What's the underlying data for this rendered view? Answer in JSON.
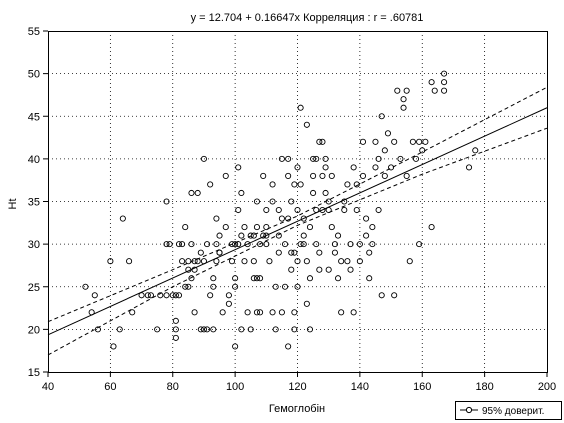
{
  "chart_data": {
    "type": "scatter",
    "title": "y = 12.704 + 0.16647x  Корреляция : r = .60781",
    "xlabel": "Гемоглобін",
    "ylabel": "Ht",
    "xlim": [
      40,
      200
    ],
    "ylim": [
      15,
      55
    ],
    "x_ticks": [
      40,
      60,
      80,
      100,
      120,
      140,
      160,
      180,
      200
    ],
    "y_ticks": [
      15,
      20,
      25,
      30,
      35,
      40,
      45,
      50,
      55
    ],
    "grid": "dashed",
    "legend": {
      "label": "95% доверит.",
      "position": "bottom-right"
    },
    "regression": {
      "intercept": 12.704,
      "slope": 0.16647
    },
    "confidence_band_95": {
      "upper": [
        [
          40,
          20.9
        ],
        [
          80,
          27.0
        ],
        [
          120,
          33.3
        ],
        [
          160,
          40.8
        ],
        [
          200,
          48.4
        ]
      ],
      "lower": [
        [
          40,
          17.0
        ],
        [
          80,
          25.0
        ],
        [
          120,
          32.2
        ],
        [
          160,
          38.2
        ],
        [
          200,
          43.6
        ]
      ]
    },
    "points": [
      [
        52,
        25
      ],
      [
        55,
        24
      ],
      [
        56,
        20
      ],
      [
        54,
        22
      ],
      [
        60,
        28
      ],
      [
        61,
        18
      ],
      [
        63,
        20
      ],
      [
        64,
        33
      ],
      [
        66,
        28
      ],
      [
        67,
        22
      ],
      [
        70,
        24
      ],
      [
        72,
        24
      ],
      [
        73,
        24
      ],
      [
        75,
        20
      ],
      [
        76,
        24
      ],
      [
        78,
        24
      ],
      [
        78,
        35
      ],
      [
        78,
        30
      ],
      [
        79,
        30
      ],
      [
        80,
        24
      ],
      [
        81,
        24
      ],
      [
        81,
        21
      ],
      [
        81,
        20
      ],
      [
        81,
        19
      ],
      [
        82,
        24
      ],
      [
        82,
        30
      ],
      [
        83,
        30
      ],
      [
        83,
        28
      ],
      [
        84,
        25
      ],
      [
        84,
        32
      ],
      [
        85,
        25
      ],
      [
        85,
        27
      ],
      [
        85,
        28
      ],
      [
        86,
        26
      ],
      [
        86,
        30
      ],
      [
        86,
        36
      ],
      [
        87,
        28
      ],
      [
        87,
        22
      ],
      [
        87,
        27
      ],
      [
        88,
        28
      ],
      [
        88,
        36
      ],
      [
        89,
        29
      ],
      [
        89,
        20
      ],
      [
        90,
        28
      ],
      [
        90,
        40
      ],
      [
        90,
        20
      ],
      [
        91,
        30
      ],
      [
        91,
        20
      ],
      [
        92,
        24
      ],
      [
        92,
        37
      ],
      [
        93,
        25
      ],
      [
        93,
        26
      ],
      [
        93,
        20
      ],
      [
        94,
        30
      ],
      [
        94,
        33
      ],
      [
        94,
        28
      ],
      [
        95,
        29
      ],
      [
        95,
        31
      ],
      [
        95,
        29
      ],
      [
        96,
        22
      ],
      [
        97,
        38
      ],
      [
        97,
        32
      ],
      [
        98,
        24
      ],
      [
        98,
        23
      ],
      [
        99,
        28
      ],
      [
        99,
        30
      ],
      [
        100,
        18
      ],
      [
        100,
        25
      ],
      [
        100,
        26
      ],
      [
        100,
        30
      ],
      [
        101,
        34
      ],
      [
        101,
        30
      ],
      [
        101,
        39
      ],
      [
        102,
        31
      ],
      [
        102,
        36
      ],
      [
        102,
        20
      ],
      [
        103,
        32
      ],
      [
        103,
        28
      ],
      [
        104,
        30
      ],
      [
        104,
        22
      ],
      [
        105,
        20
      ],
      [
        105,
        31
      ],
      [
        106,
        28
      ],
      [
        106,
        26
      ],
      [
        106,
        31
      ],
      [
        107,
        26
      ],
      [
        107,
        32
      ],
      [
        107,
        22
      ],
      [
        107,
        35
      ],
      [
        108,
        26
      ],
      [
        108,
        22
      ],
      [
        108,
        30
      ],
      [
        109,
        38
      ],
      [
        109,
        31
      ],
      [
        110,
        30
      ],
      [
        110,
        32
      ],
      [
        110,
        31
      ],
      [
        110,
        34
      ],
      [
        111,
        28
      ],
      [
        112,
        22
      ],
      [
        112,
        37
      ],
      [
        112,
        35
      ],
      [
        113,
        20
      ],
      [
        113,
        25
      ],
      [
        114,
        31
      ],
      [
        114,
        34
      ],
      [
        114,
        29
      ],
      [
        115,
        33
      ],
      [
        115,
        22
      ],
      [
        115,
        40
      ],
      [
        116,
        25
      ],
      [
        116,
        30
      ],
      [
        117,
        40
      ],
      [
        117,
        38
      ],
      [
        117,
        33
      ],
      [
        117,
        18
      ],
      [
        118,
        29
      ],
      [
        118,
        27
      ],
      [
        118,
        35
      ],
      [
        119,
        37
      ],
      [
        119,
        29
      ],
      [
        119,
        20
      ],
      [
        119,
        22
      ],
      [
        120,
        34
      ],
      [
        120,
        28
      ],
      [
        120,
        25
      ],
      [
        120,
        39
      ],
      [
        121,
        30
      ],
      [
        121,
        46
      ],
      [
        121,
        37
      ],
      [
        122,
        33
      ],
      [
        122,
        31
      ],
      [
        122,
        30
      ],
      [
        123,
        23
      ],
      [
        123,
        28
      ],
      [
        123,
        44
      ],
      [
        124,
        32
      ],
      [
        124,
        20
      ],
      [
        124,
        26
      ],
      [
        125,
        36
      ],
      [
        125,
        38
      ],
      [
        125,
        40
      ],
      [
        126,
        30
      ],
      [
        126,
        34
      ],
      [
        126,
        40
      ],
      [
        127,
        29
      ],
      [
        127,
        27
      ],
      [
        127,
        42
      ],
      [
        128,
        38
      ],
      [
        128,
        34
      ],
      [
        128,
        42
      ],
      [
        129,
        39
      ],
      [
        129,
        36
      ],
      [
        129,
        40
      ],
      [
        130,
        35
      ],
      [
        130,
        27
      ],
      [
        130,
        34
      ],
      [
        131,
        38
      ],
      [
        131,
        32
      ],
      [
        132,
        30
      ],
      [
        132,
        29
      ],
      [
        133,
        26
      ],
      [
        133,
        31
      ],
      [
        134,
        28
      ],
      [
        134,
        22
      ],
      [
        135,
        34
      ],
      [
        135,
        35
      ],
      [
        136,
        37
      ],
      [
        136,
        28
      ],
      [
        137,
        27
      ],
      [
        137,
        30
      ],
      [
        138,
        39
      ],
      [
        138,
        22
      ],
      [
        139,
        34
      ],
      [
        139,
        37
      ],
      [
        140,
        30
      ],
      [
        140,
        28
      ],
      [
        141,
        38
      ],
      [
        141,
        42
      ],
      [
        142,
        33
      ],
      [
        142,
        31
      ],
      [
        143,
        26
      ],
      [
        143,
        29
      ],
      [
        144,
        30
      ],
      [
        144,
        32
      ],
      [
        145,
        39
      ],
      [
        145,
        42
      ],
      [
        146,
        40
      ],
      [
        146,
        34
      ],
      [
        147,
        24
      ],
      [
        147,
        45
      ],
      [
        148,
        38
      ],
      [
        148,
        41
      ],
      [
        149,
        43
      ],
      [
        150,
        39
      ],
      [
        151,
        24
      ],
      [
        151,
        42
      ],
      [
        152,
        48
      ],
      [
        153,
        40
      ],
      [
        154,
        46
      ],
      [
        154,
        47
      ],
      [
        155,
        48
      ],
      [
        155,
        38
      ],
      [
        156,
        28
      ],
      [
        157,
        42
      ],
      [
        158,
        40
      ],
      [
        159,
        30
      ],
      [
        159,
        42
      ],
      [
        160,
        41
      ],
      [
        161,
        42
      ],
      [
        163,
        32
      ],
      [
        163,
        49
      ],
      [
        164,
        48
      ],
      [
        167,
        50
      ],
      [
        167,
        48
      ],
      [
        167,
        49
      ],
      [
        175,
        39
      ],
      [
        177,
        41
      ]
    ]
  }
}
